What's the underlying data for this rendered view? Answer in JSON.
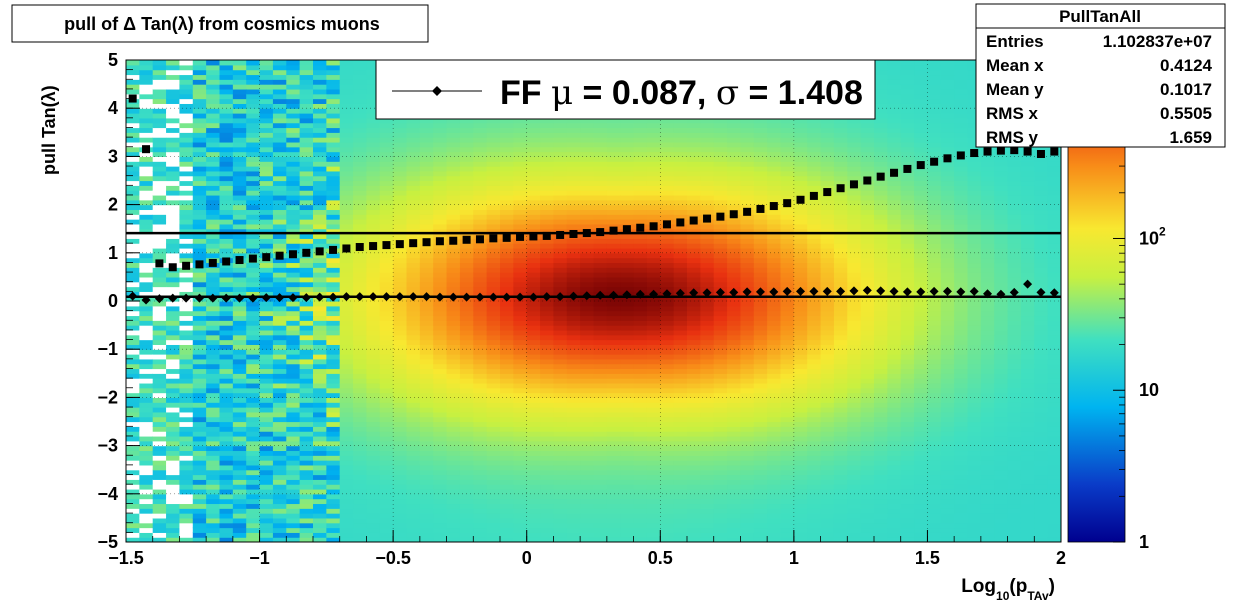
{
  "chart_data": {
    "type": "heatmap",
    "title": "pull of Δ Tan(λ) from cosmics muons",
    "xlabel_main": "Log",
    "xlabel_sub1": "10",
    "xlabel_mid": "(p",
    "xlabel_sub2": "TAv",
    "xlabel_end": ")",
    "ylabel": "pull Tan(λ)",
    "xlim": [
      -1.5,
      2
    ],
    "ylim": [
      -5,
      5
    ],
    "z_log_scale": true,
    "grid": true,
    "x_ticks": [
      {
        "value": -1.5,
        "label": "−1.5"
      },
      {
        "value": -1,
        "label": "−1"
      },
      {
        "value": -0.5,
        "label": "−0.5"
      },
      {
        "value": 0,
        "label": "0"
      },
      {
        "value": 0.5,
        "label": "0.5"
      },
      {
        "value": 1,
        "label": "1"
      },
      {
        "value": 1.5,
        "label": "1.5"
      },
      {
        "value": 2,
        "label": "2"
      }
    ],
    "y_ticks": [
      {
        "value": 5,
        "label": "5"
      },
      {
        "value": 4,
        "label": "4"
      },
      {
        "value": 3,
        "label": "3"
      },
      {
        "value": 2,
        "label": "2"
      },
      {
        "value": 1,
        "label": "1"
      },
      {
        "value": 0,
        "label": "0"
      },
      {
        "value": -1,
        "label": "−1"
      },
      {
        "value": -2,
        "label": "−2"
      },
      {
        "value": -3,
        "label": "−3"
      },
      {
        "value": -4,
        "label": "−4"
      },
      {
        "value": -5,
        "label": "−5"
      }
    ],
    "colorbar": {
      "range": [
        1,
        1500
      ],
      "ticks": [
        {
          "value": 1,
          "label": "1"
        },
        {
          "value": 10,
          "label": "10"
        },
        {
          "value": 100,
          "label": "10",
          "sup": "2"
        }
      ]
    },
    "density_model": {
      "peak_x": 0.35,
      "peak_y": 0.1,
      "sigma_y": 1.6,
      "x_width": 0.6,
      "low_x_cutoff": -0.7
    },
    "series": [
      {
        "name": "mean",
        "marker": "diamond",
        "points": [
          [
            -1.475,
            0.1
          ],
          [
            -1.425,
            0.02
          ],
          [
            -1.375,
            0.05
          ],
          [
            -1.325,
            0.06
          ],
          [
            -1.275,
            0.06
          ],
          [
            -1.225,
            0.06
          ],
          [
            -1.175,
            0.06
          ],
          [
            -1.125,
            0.06
          ],
          [
            -1.075,
            0.06
          ],
          [
            -1.025,
            0.06
          ],
          [
            -0.975,
            0.07
          ],
          [
            -0.925,
            0.07
          ],
          [
            -0.875,
            0.07
          ],
          [
            -0.825,
            0.07
          ],
          [
            -0.775,
            0.08
          ],
          [
            -0.725,
            0.08
          ],
          [
            -0.675,
            0.09
          ],
          [
            -0.625,
            0.09
          ],
          [
            -0.575,
            0.09
          ],
          [
            -0.525,
            0.09
          ],
          [
            -0.475,
            0.09
          ],
          [
            -0.425,
            0.09
          ],
          [
            -0.375,
            0.09
          ],
          [
            -0.325,
            0.08
          ],
          [
            -0.275,
            0.08
          ],
          [
            -0.225,
            0.08
          ],
          [
            -0.175,
            0.08
          ],
          [
            -0.125,
            0.08
          ],
          [
            -0.075,
            0.08
          ],
          [
            -0.025,
            0.08
          ],
          [
            0.025,
            0.08
          ],
          [
            0.075,
            0.09
          ],
          [
            0.125,
            0.09
          ],
          [
            0.175,
            0.1
          ],
          [
            0.225,
            0.11
          ],
          [
            0.275,
            0.12
          ],
          [
            0.325,
            0.12
          ],
          [
            0.375,
            0.13
          ],
          [
            0.425,
            0.14
          ],
          [
            0.475,
            0.14
          ],
          [
            0.525,
            0.15
          ],
          [
            0.575,
            0.16
          ],
          [
            0.625,
            0.17
          ],
          [
            0.675,
            0.17
          ],
          [
            0.725,
            0.18
          ],
          [
            0.775,
            0.18
          ],
          [
            0.825,
            0.19
          ],
          [
            0.875,
            0.19
          ],
          [
            0.925,
            0.19
          ],
          [
            0.975,
            0.2
          ],
          [
            1.025,
            0.2
          ],
          [
            1.075,
            0.2
          ],
          [
            1.125,
            0.2
          ],
          [
            1.175,
            0.2
          ],
          [
            1.225,
            0.21
          ],
          [
            1.275,
            0.22
          ],
          [
            1.325,
            0.21
          ],
          [
            1.375,
            0.2
          ],
          [
            1.425,
            0.19
          ],
          [
            1.475,
            0.19
          ],
          [
            1.525,
            0.2
          ],
          [
            1.575,
            0.2
          ],
          [
            1.625,
            0.19
          ],
          [
            1.675,
            0.2
          ],
          [
            1.725,
            0.15
          ],
          [
            1.775,
            0.14
          ],
          [
            1.825,
            0.18
          ],
          [
            1.875,
            0.35
          ],
          [
            1.925,
            0.18
          ],
          [
            1.975,
            0.17
          ]
        ]
      },
      {
        "name": "rms",
        "marker": "square",
        "points": [
          [
            -1.475,
            4.2
          ],
          [
            -1.425,
            3.15
          ],
          [
            -1.375,
            0.78
          ],
          [
            -1.325,
            0.7
          ],
          [
            -1.275,
            0.73
          ],
          [
            -1.225,
            0.76
          ],
          [
            -1.175,
            0.79
          ],
          [
            -1.125,
            0.82
          ],
          [
            -1.075,
            0.85
          ],
          [
            -1.025,
            0.88
          ],
          [
            -0.975,
            0.91
          ],
          [
            -0.925,
            0.94
          ],
          [
            -0.875,
            0.97
          ],
          [
            -0.825,
            1.0
          ],
          [
            -0.775,
            1.03
          ],
          [
            -0.725,
            1.06
          ],
          [
            -0.675,
            1.09
          ],
          [
            -0.625,
            1.12
          ],
          [
            -0.575,
            1.14
          ],
          [
            -0.525,
            1.16
          ],
          [
            -0.475,
            1.18
          ],
          [
            -0.425,
            1.2
          ],
          [
            -0.375,
            1.22
          ],
          [
            -0.325,
            1.24
          ],
          [
            -0.275,
            1.25
          ],
          [
            -0.225,
            1.27
          ],
          [
            -0.175,
            1.28
          ],
          [
            -0.125,
            1.3
          ],
          [
            -0.075,
            1.31
          ],
          [
            -0.025,
            1.33
          ],
          [
            0.025,
            1.34
          ],
          [
            0.075,
            1.35
          ],
          [
            0.125,
            1.37
          ],
          [
            0.175,
            1.39
          ],
          [
            0.225,
            1.41
          ],
          [
            0.275,
            1.43
          ],
          [
            0.325,
            1.46
          ],
          [
            0.375,
            1.49
          ],
          [
            0.425,
            1.52
          ],
          [
            0.475,
            1.55
          ],
          [
            0.525,
            1.59
          ],
          [
            0.575,
            1.63
          ],
          [
            0.625,
            1.67
          ],
          [
            0.675,
            1.71
          ],
          [
            0.725,
            1.75
          ],
          [
            0.775,
            1.8
          ],
          [
            0.825,
            1.85
          ],
          [
            0.875,
            1.91
          ],
          [
            0.925,
            1.97
          ],
          [
            0.975,
            2.03
          ],
          [
            1.025,
            2.1
          ],
          [
            1.075,
            2.18
          ],
          [
            1.125,
            2.26
          ],
          [
            1.175,
            2.34
          ],
          [
            1.225,
            2.42
          ],
          [
            1.275,
            2.5
          ],
          [
            1.325,
            2.58
          ],
          [
            1.375,
            2.66
          ],
          [
            1.425,
            2.74
          ],
          [
            1.475,
            2.82
          ],
          [
            1.525,
            2.89
          ],
          [
            1.575,
            2.96
          ],
          [
            1.625,
            3.02
          ],
          [
            1.675,
            3.07
          ],
          [
            1.725,
            3.1
          ],
          [
            1.775,
            3.12
          ],
          [
            1.825,
            3.13
          ],
          [
            1.875,
            3.1
          ],
          [
            1.925,
            3.05
          ],
          [
            1.975,
            3.1
          ]
        ]
      }
    ],
    "fit_lines": [
      {
        "name": "mu",
        "y": 0.087
      },
      {
        "name": "sigma",
        "y": 1.408
      }
    ],
    "legend": {
      "placement": "top-center",
      "prefix": "FF ",
      "mu_symbol": "μ",
      "mu_text": " =  0.087, ",
      "sigma_symbol": "σ",
      "sigma_text": " =   1.408"
    },
    "stats": {
      "placement": "top-right",
      "name": "PullTanAll",
      "rows": [
        {
          "label": "Entries",
          "value": "1.102837e+07"
        },
        {
          "label": "Mean x",
          "value": "0.4124"
        },
        {
          "label": "Mean y",
          "value": "0.1017"
        },
        {
          "label": "RMS x",
          "value": "0.5505"
        },
        {
          "label": "RMS y",
          "value": "1.659"
        }
      ]
    }
  }
}
